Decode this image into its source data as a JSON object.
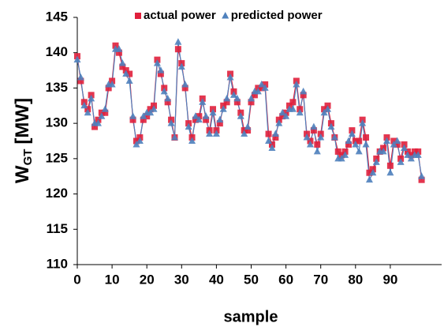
{
  "chart_data": {
    "type": "line",
    "x_label": "sample",
    "y_label": {
      "main": "W",
      "sub": "GT",
      "unit": "[MW]"
    },
    "x": [
      0,
      1,
      2,
      3,
      4,
      5,
      6,
      7,
      8,
      9,
      10,
      11,
      12,
      13,
      14,
      15,
      16,
      17,
      18,
      19,
      20,
      21,
      22,
      23,
      24,
      25,
      26,
      27,
      28,
      29,
      30,
      31,
      32,
      33,
      34,
      35,
      36,
      37,
      38,
      39,
      40,
      41,
      42,
      43,
      44,
      45,
      46,
      47,
      48,
      49,
      50,
      51,
      52,
      53,
      54,
      55,
      56,
      57,
      58,
      59,
      60,
      61,
      62,
      63,
      64,
      65,
      66,
      67,
      68,
      69,
      70,
      71,
      72,
      73,
      74,
      75,
      76,
      77,
      78,
      79,
      80,
      81,
      82,
      83,
      84,
      85,
      86,
      87,
      88,
      89,
      90,
      91,
      92,
      93,
      94,
      95,
      96,
      97,
      98,
      99
    ],
    "series": [
      {
        "name": "actual power",
        "color": "#e0203c",
        "marker": "square",
        "values": [
          139.5,
          136,
          133,
          132,
          134,
          129.5,
          130.5,
          131.5,
          131.5,
          135,
          136,
          141,
          140,
          138,
          137.5,
          137,
          130.5,
          127.5,
          128,
          130.5,
          131,
          132,
          132.5,
          139,
          137,
          135,
          133,
          130.5,
          128,
          140.5,
          138.5,
          135,
          130,
          128,
          130.5,
          131,
          133.5,
          130.5,
          129,
          132,
          129,
          130,
          132.5,
          133,
          137,
          134.5,
          133,
          131.5,
          129,
          129,
          133,
          134,
          135,
          135,
          135.5,
          128.5,
          127,
          128,
          130.5,
          131,
          131.5,
          132.5,
          133,
          136,
          132,
          134,
          128.5,
          127.5,
          129,
          127,
          128.5,
          132,
          132.5,
          130,
          128,
          126,
          125.5,
          126,
          127,
          129,
          127.5,
          127.5,
          130.5,
          128,
          123,
          123.5,
          125,
          126,
          126.5,
          128,
          124,
          127.5,
          127,
          125,
          127,
          126,
          125.5,
          126,
          126,
          122
        ]
      },
      {
        "name": "predicted power",
        "color": "#4f81bd",
        "marker": "triangle",
        "values": [
          139,
          136.5,
          132.5,
          131.5,
          133.5,
          130,
          130,
          131,
          132,
          135.5,
          135.5,
          140.5,
          140.5,
          138.5,
          137,
          136,
          131,
          127,
          127.5,
          131,
          131.5,
          131.5,
          132,
          138.5,
          137.5,
          134.5,
          133.5,
          130,
          128,
          141.5,
          138,
          135.5,
          129.5,
          127.5,
          131,
          130.5,
          133,
          131,
          128.5,
          131.5,
          128.5,
          130.5,
          132,
          133.5,
          136.5,
          134,
          133.5,
          131,
          128.5,
          129.5,
          133.5,
          134.5,
          134.5,
          135.5,
          135,
          127.5,
          126.5,
          128.5,
          130,
          131.5,
          131,
          132,
          132,
          135.5,
          131.5,
          134.5,
          128,
          127,
          129.5,
          126,
          128,
          131.5,
          132,
          129.5,
          128,
          125,
          125,
          125.5,
          127.5,
          128.5,
          127,
          126,
          130,
          127,
          122,
          123,
          124.5,
          126,
          126,
          127.5,
          123,
          127,
          127.5,
          124.5,
          126.5,
          125.5,
          125,
          125.5,
          125.5,
          122.5
        ]
      }
    ],
    "xlim": [
      0,
      100
    ],
    "xticks": [
      0,
      10,
      20,
      30,
      40,
      50,
      60,
      70,
      80,
      90
    ],
    "ylim": [
      110,
      145
    ],
    "yticks": [
      110,
      115,
      120,
      125,
      130,
      135,
      140,
      145
    ],
    "legend": "top"
  }
}
